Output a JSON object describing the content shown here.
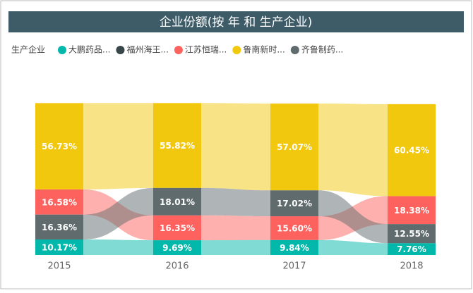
{
  "chart_data": {
    "type": "ribbon",
    "title": "企业份额(按 年 和 生产企业)",
    "legend_title": "生产企业",
    "categories": [
      "2015",
      "2016",
      "2017",
      "2018"
    ],
    "ylim": [
      0,
      100
    ],
    "series": [
      {
        "name": "大鹏药品...",
        "color": "#01B8AA",
        "values": [
          10.17,
          9.69,
          9.84,
          7.76
        ],
        "value_labels": [
          "10.17%",
          "9.69%",
          "9.84%",
          "7.76%"
        ]
      },
      {
        "name": "福州海王...",
        "color": "#374649",
        "values": [
          null,
          null,
          null,
          null
        ]
      },
      {
        "name": "江苏恒瑞...",
        "color": "#FD625E",
        "values": [
          16.58,
          16.35,
          15.6,
          18.38
        ],
        "value_labels": [
          "16.58%",
          "16.35%",
          "15.60%",
          "18.38%"
        ]
      },
      {
        "name": "鲁南新时...",
        "color": "#F2C80F",
        "values": [
          56.73,
          55.82,
          57.07,
          60.45
        ],
        "value_labels": [
          "56.73%",
          "55.82%",
          "57.07%",
          "60.45%"
        ]
      },
      {
        "name": "齐鲁制药...",
        "color": "#5F6B6D",
        "values": [
          16.36,
          18.01,
          17.02,
          12.55
        ],
        "value_labels": [
          "16.36%",
          "18.01%",
          "17.02%",
          "12.55%"
        ]
      }
    ]
  }
}
